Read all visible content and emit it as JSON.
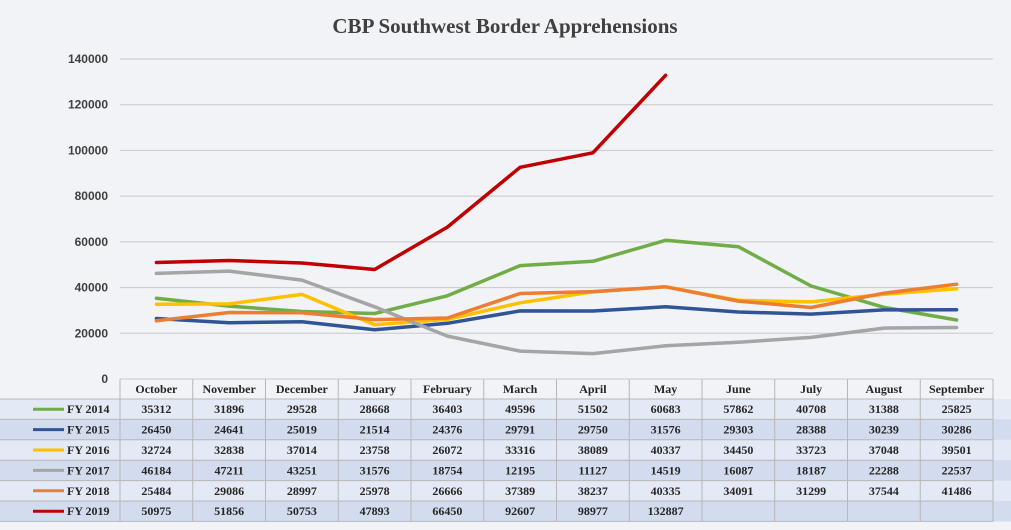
{
  "chart_data": {
    "type": "line",
    "title": "CBP Southwest Border Apprehensions",
    "xlabel": "",
    "ylabel": "",
    "ylim": [
      0,
      140000
    ],
    "yticks": [
      0,
      20000,
      40000,
      60000,
      80000,
      100000,
      120000,
      140000
    ],
    "ytick_labels": [
      "0",
      "20000",
      "40000",
      "60000",
      "80000",
      "100000",
      "120000",
      "140000"
    ],
    "grid": true,
    "legend": "data-table-below",
    "categories": [
      "October",
      "November",
      "December",
      "January",
      "February",
      "March",
      "April",
      "May",
      "June",
      "July",
      "August",
      "September"
    ],
    "series": [
      {
        "name": "FY 2014",
        "color": "#70ad47",
        "values": [
          35312,
          31896,
          29528,
          28668,
          36403,
          49596,
          51502,
          60683,
          57862,
          40708,
          31388,
          25825
        ]
      },
      {
        "name": "FY 2015",
        "color": "#2f5597",
        "values": [
          26450,
          24641,
          25019,
          21514,
          24376,
          29791,
          29750,
          31576,
          29303,
          28388,
          30239,
          30286
        ]
      },
      {
        "name": "FY 2016",
        "color": "#ffc000",
        "values": [
          32724,
          32838,
          37014,
          23758,
          26072,
          33316,
          38089,
          40337,
          34450,
          33723,
          37048,
          39501
        ]
      },
      {
        "name": "FY 2017",
        "color": "#a5a5a5",
        "values": [
          46184,
          47211,
          43251,
          31576,
          18754,
          12195,
          11127,
          14519,
          16087,
          18187,
          22288,
          22537
        ]
      },
      {
        "name": "FY 2018",
        "color": "#ed7d31",
        "values": [
          25484,
          29086,
          28997,
          25978,
          26666,
          37389,
          38237,
          40335,
          34091,
          31299,
          37544,
          41486
        ]
      },
      {
        "name": "FY 2019",
        "color": "#c00000",
        "values": [
          50975,
          51856,
          50753,
          47893,
          66450,
          92607,
          98977,
          132887,
          null,
          null,
          null,
          null
        ]
      }
    ]
  }
}
